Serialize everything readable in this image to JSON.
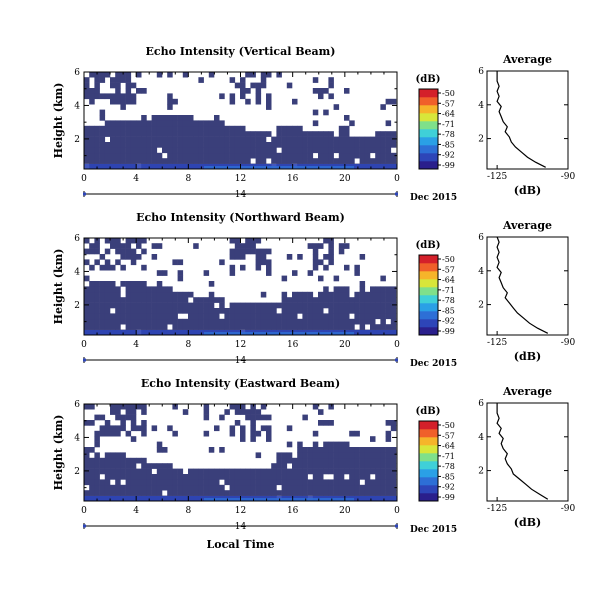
{
  "chart_data": [
    {
      "type": "heatmap",
      "title": "Echo Intensity (Vertical Beam)",
      "ylabel": "Height (km)",
      "xlabel": "",
      "x_ticks": [
        "0",
        "4",
        "8",
        "12",
        "16",
        "20",
        "0"
      ],
      "y_ticks": [
        "2",
        "4",
        "6"
      ],
      "xlim": [
        0,
        24
      ],
      "ylim": [
        0.2,
        6
      ],
      "date_marker": "14",
      "date_label": "Dec 2015",
      "colorbar": {
        "unit": "(dB)",
        "ticks": [
          "-50",
          "-57",
          "-64",
          "-71",
          "-78",
          "-85",
          "-92",
          "-99"
        ]
      },
      "profile": {
        "title": "Average",
        "xlabel": "(dB)",
        "x_ticks": [
          "-125",
          "-90"
        ],
        "y_ticks": [
          "2",
          "4",
          "6"
        ],
        "xlim": [
          -130,
          -90
        ],
        "points": [
          [
            -101,
            0.3
          ],
          [
            -106,
            0.6
          ],
          [
            -110,
            0.9
          ],
          [
            -113,
            1.2
          ],
          [
            -116,
            1.5
          ],
          [
            -118,
            1.8
          ],
          [
            -119,
            2.1
          ],
          [
            -121,
            2.4
          ],
          [
            -120,
            2.7
          ],
          [
            -122,
            3.0
          ],
          [
            -123,
            3.3
          ],
          [
            -124,
            3.6
          ],
          [
            -123,
            3.9
          ],
          [
            -125,
            4.2
          ],
          [
            -124,
            4.5
          ],
          [
            -125,
            4.8
          ],
          [
            -124,
            5.1
          ],
          [
            -125,
            5.4
          ],
          [
            -125,
            5.7
          ],
          [
            -125,
            6.0
          ]
        ]
      }
    },
    {
      "type": "heatmap",
      "title": "Echo Intensity (Northward Beam)",
      "ylabel": "Height (km)",
      "xlabel": "",
      "x_ticks": [
        "0",
        "4",
        "8",
        "12",
        "16",
        "20",
        "0"
      ],
      "y_ticks": [
        "2",
        "4",
        "6"
      ],
      "xlim": [
        0,
        24
      ],
      "ylim": [
        0.2,
        6
      ],
      "date_marker": "14",
      "date_label": "Dec 2015",
      "colorbar": {
        "unit": "(dB)",
        "ticks": [
          "-50",
          "-57",
          "-64",
          "-71",
          "-78",
          "-85",
          "-92",
          "-99"
        ]
      },
      "profile": {
        "title": "Average",
        "xlabel": "(dB)",
        "x_ticks": [
          "-125",
          "-90"
        ],
        "y_ticks": [
          "2",
          "4",
          "6"
        ],
        "xlim": [
          -130,
          -90
        ],
        "points": [
          [
            -100,
            0.3
          ],
          [
            -105,
            0.6
          ],
          [
            -109,
            0.9
          ],
          [
            -112,
            1.2
          ],
          [
            -115,
            1.5
          ],
          [
            -117,
            1.8
          ],
          [
            -119,
            2.1
          ],
          [
            -121,
            2.4
          ],
          [
            -120,
            2.7
          ],
          [
            -122,
            3.0
          ],
          [
            -123,
            3.3
          ],
          [
            -124,
            3.6
          ],
          [
            -123,
            3.9
          ],
          [
            -125,
            4.2
          ],
          [
            -124,
            4.5
          ],
          [
            -125,
            4.8
          ],
          [
            -124,
            5.1
          ],
          [
            -125,
            5.4
          ],
          [
            -124,
            5.7
          ],
          [
            -125,
            6.0
          ]
        ]
      }
    },
    {
      "type": "heatmap",
      "title": "Echo Intensity (Eastward Beam)",
      "ylabel": "Height (km)",
      "xlabel": "Local Time",
      "x_ticks": [
        "0",
        "4",
        "8",
        "12",
        "16",
        "20",
        "0"
      ],
      "y_ticks": [
        "2",
        "4",
        "6"
      ],
      "xlim": [
        0,
        24
      ],
      "ylim": [
        0.2,
        6
      ],
      "date_marker": "14",
      "date_label": "Dec 2015",
      "colorbar": {
        "unit": "(dB)",
        "ticks": [
          "-50",
          "-57",
          "-64",
          "-71",
          "-78",
          "-85",
          "-92",
          "-99"
        ]
      },
      "profile": {
        "title": "Average",
        "xlabel": "(dB)",
        "x_ticks": [
          "-125",
          "-90"
        ],
        "y_ticks": [
          "2",
          "4",
          "6"
        ],
        "xlim": [
          -130,
          -90
        ],
        "points": [
          [
            -100,
            0.3
          ],
          [
            -104,
            0.6
          ],
          [
            -108,
            0.9
          ],
          [
            -111,
            1.2
          ],
          [
            -114,
            1.5
          ],
          [
            -117,
            1.8
          ],
          [
            -118,
            2.1
          ],
          [
            -120,
            2.4
          ],
          [
            -121,
            2.7
          ],
          [
            -120,
            3.0
          ],
          [
            -122,
            3.3
          ],
          [
            -123,
            3.6
          ],
          [
            -122,
            3.9
          ],
          [
            -124,
            4.2
          ],
          [
            -123,
            4.5
          ],
          [
            -125,
            4.8
          ],
          [
            -124,
            5.1
          ],
          [
            -125,
            5.4
          ],
          [
            -125,
            5.7
          ],
          [
            -125,
            6.0
          ]
        ]
      }
    }
  ],
  "colors": {
    "field_base": "#3a3f7a",
    "colorbar": [
      "#2a1f8c",
      "#2d45b8",
      "#2d6fd6",
      "#2aa0e6",
      "#3fd0d8",
      "#7fe08a",
      "#d8e63a",
      "#f6b42a",
      "#f0602a",
      "#d4202a"
    ]
  }
}
